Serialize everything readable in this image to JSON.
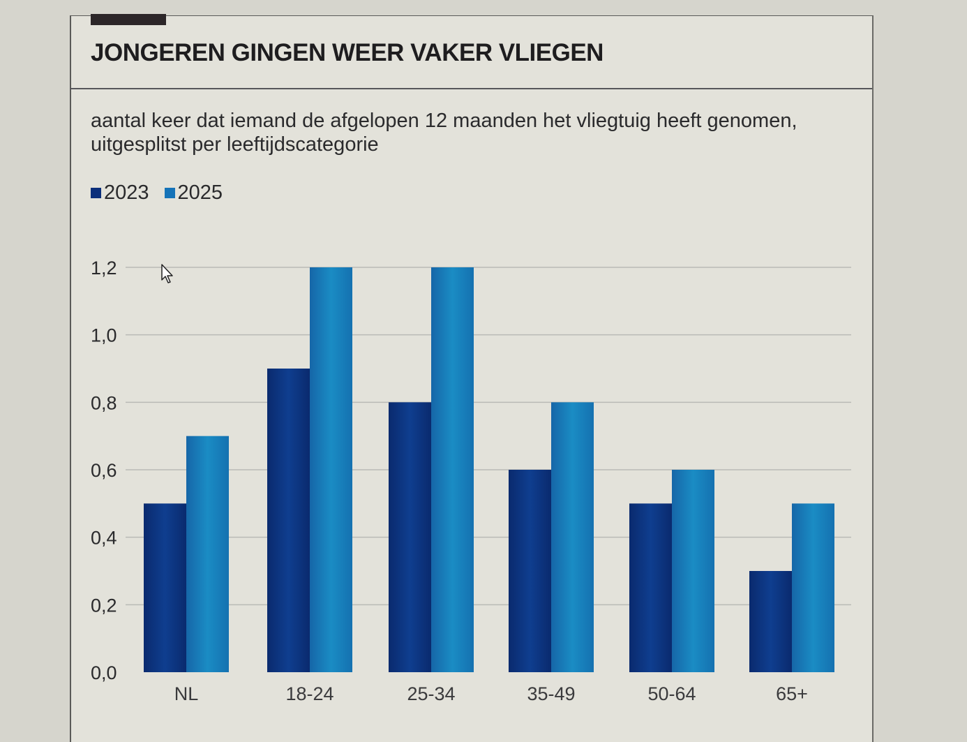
{
  "header": {
    "title": "JONGEREN GINGEN WEER VAKER VLIEGEN",
    "subtitle": "aantal keer dat iemand de afgelopen 12 maanden het vliegtuig heeft genomen, uitgesplitst per leeftijdscategorie"
  },
  "colors": {
    "series_2023": "#0b2f7a",
    "series_2025": "#1573b8",
    "grid": "#b9bab6",
    "text": "#2a2a2c"
  },
  "chart_data": {
    "type": "bar",
    "title": "JONGEREN GINGEN WEER VAKER VLIEGEN",
    "subtitle": "aantal keer dat iemand de afgelopen 12 maanden het vliegtuig heeft genomen, uitgesplitst per leeftijdscategorie",
    "categories": [
      "NL",
      "18-24",
      "25-34",
      "35-49",
      "50-64",
      "65+"
    ],
    "series": [
      {
        "name": "2023",
        "values": [
          0.5,
          0.9,
          0.8,
          0.6,
          0.5,
          0.3
        ]
      },
      {
        "name": "2025",
        "values": [
          0.7,
          1.2,
          1.2,
          0.8,
          0.6,
          0.5
        ]
      }
    ],
    "yticks": [
      "0,0",
      "0,2",
      "0,4",
      "0,6",
      "0,8",
      "1,0",
      "1,2"
    ],
    "ylim": [
      0,
      1.2
    ],
    "grid": true,
    "legend_position": "top-left"
  }
}
